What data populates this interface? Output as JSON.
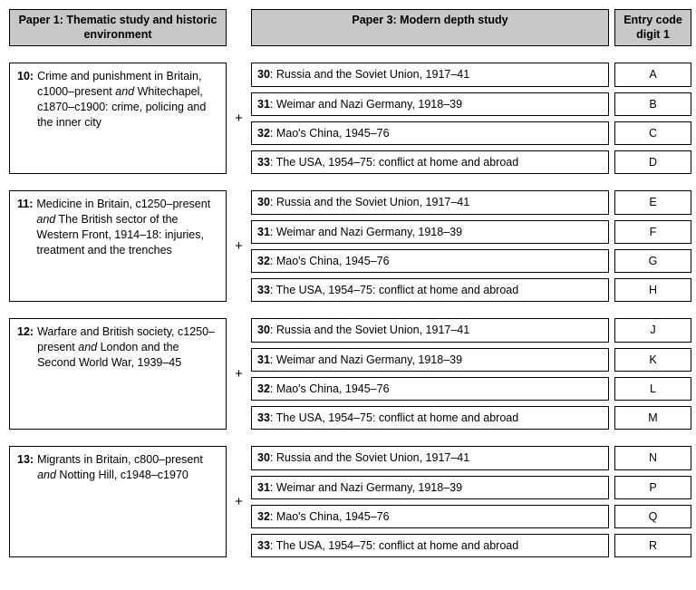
{
  "headers": {
    "paper1": "Paper 1: Thematic study and historic environment",
    "paper3": "Paper 3: Modern depth study",
    "entry": "Entry code digit 1"
  },
  "paper3_options": [
    {
      "num": "30",
      "title": "Russia and the Soviet Union, 1917–41"
    },
    {
      "num": "31",
      "title": "Weimar and Nazi Germany, 1918–39"
    },
    {
      "num": "32",
      "title": "Mao's China, 1945–76"
    },
    {
      "num": "33",
      "title": "The USA, 1954–75: conflict at home and abroad"
    }
  ],
  "blocks": [
    {
      "num": "10",
      "desc_pre": "Crime and punishment in Britain, c1000–present ",
      "desc_and": "and",
      "desc_post": " Whitechapel, c1870–c1900: crime, policing and the inner city",
      "codes": [
        "A",
        "B",
        "C",
        "D"
      ]
    },
    {
      "num": "11",
      "desc_pre": "Medicine in Britain, c1250–present ",
      "desc_and": "and",
      "desc_post": " The British sector of the Western Front, 1914–18: injuries, treatment and the trenches",
      "codes": [
        "E",
        "F",
        "G",
        "H"
      ]
    },
    {
      "num": "12",
      "desc_pre": "Warfare and British society, c1250–present ",
      "desc_and": "and",
      "desc_post": " London and the Second World War, 1939–45",
      "codes": [
        "J",
        "K",
        "L",
        "M"
      ]
    },
    {
      "num": "13",
      "desc_pre": "Migrants in Britain, c800–present ",
      "desc_and": "and",
      "desc_post": " Notting Hill, c1948–c1970",
      "codes": [
        "N",
        "P",
        "Q",
        "R"
      ]
    }
  ],
  "plus": "+"
}
